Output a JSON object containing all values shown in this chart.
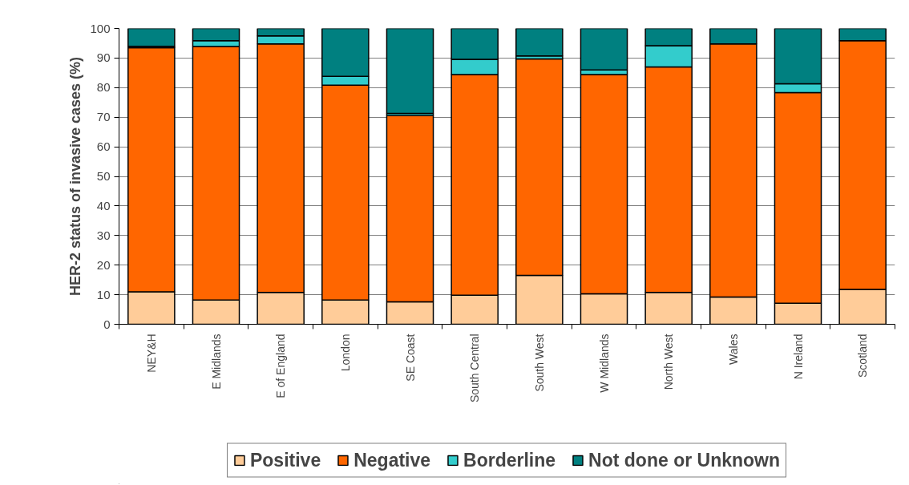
{
  "chart_data": {
    "type": "bar",
    "stacked": true,
    "ylabel": "HER-2 status of invasive cases (%)",
    "categories": [
      "NEY&H",
      "E Midlands",
      "E of England",
      "London",
      "SE Coast",
      "South Central",
      "South West",
      "W Midlands",
      "North West",
      "Wales",
      "N Ireland",
      "Scotland"
    ],
    "series": [
      {
        "name": "Positive",
        "color": "#ffcc99",
        "values": [
          11.0,
          8.2,
          10.8,
          8.2,
          7.6,
          9.8,
          16.5,
          10.3,
          10.8,
          9.2,
          7.1,
          11.8
        ]
      },
      {
        "name": "Negative",
        "color": "#ff6600",
        "values": [
          82.5,
          85.7,
          84.0,
          72.6,
          62.9,
          74.6,
          73.2,
          74.1,
          76.2,
          85.6,
          71.2,
          84.1
        ]
      },
      {
        "name": "Borderline",
        "color": "#33cccc",
        "values": [
          0.5,
          2.0,
          2.7,
          3.0,
          0.8,
          5.2,
          1.0,
          1.6,
          7.2,
          null,
          3.0,
          null
        ]
      },
      {
        "name": "Not done or Unknown",
        "color": "#008080",
        "values": [
          6.0,
          4.1,
          2.5,
          16.2,
          28.7,
          10.4,
          9.3,
          14.0,
          5.8,
          5.2,
          18.7,
          4.1
        ]
      }
    ],
    "ylim": [
      0,
      100
    ],
    "yticks": [
      0,
      10,
      20,
      30,
      40,
      50,
      60,
      70,
      80,
      90,
      100
    ],
    "grid": "y",
    "legend": "bottom"
  }
}
